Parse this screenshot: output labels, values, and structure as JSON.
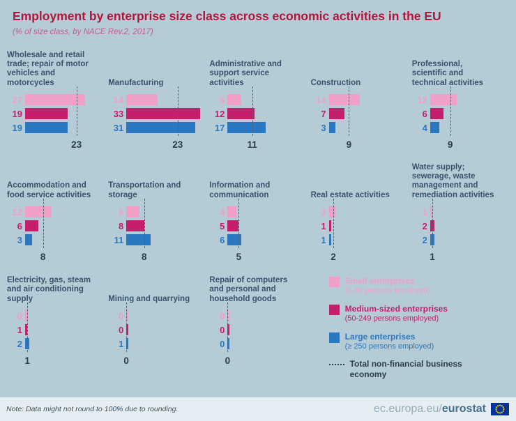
{
  "colors": {
    "background": "#b5cbd6",
    "title": "#b01639",
    "subtitle": "#c75b93",
    "small": "#f09fc6",
    "medium": "#c41e6c",
    "large": "#2a79c0",
    "chart_title_text": "#37536b",
    "total_text": "#2b3c4a",
    "eu_flag_blue": "#003399",
    "eu_flag_stars": "#ffcc00"
  },
  "header": {
    "title": "Employment by enterprise size class across economic activities in the EU",
    "subtitle": "(% of size class, by NACE Rev.2, 2017)"
  },
  "chart_data": {
    "type": "bar",
    "orientation": "horizontal",
    "title": "Employment by enterprise size class across economic activities in the EU",
    "subtitle": "(% of size class, by NACE Rev.2, 2017)",
    "unit": "% of size class",
    "legend_position": "bottom-right",
    "categories": [
      "Wholesale and retail trade; repair of motor vehicles and motorcycles",
      "Manufacturing",
      "Administrative and support service activities",
      "Construction",
      "Professional, scientific and technical activities",
      "Accommodation and food service activities",
      "Transportation and storage",
      "Information and communication",
      "Real estate activities",
      "Water supply; sewerage, waste management and remediation activities",
      "Electricity, gas, steam and air conditioning supply",
      "Mining and quarrying",
      "Repair of computers and personal and household goods"
    ],
    "series": [
      {
        "name": "Small enterprises (0-49 persons employed)",
        "values": [
          27,
          14,
          6,
          14,
          12,
          12,
          6,
          4,
          3,
          1,
          0,
          0,
          0
        ]
      },
      {
        "name": "Medium-sized enterprises (50-249 persons employed)",
        "values": [
          19,
          33,
          12,
          7,
          6,
          6,
          8,
          5,
          1,
          2,
          1,
          0,
          0
        ]
      },
      {
        "name": "Large enterprises (≥ 250 persons employed)",
        "values": [
          19,
          31,
          17,
          3,
          4,
          3,
          11,
          6,
          1,
          2,
          2,
          1,
          0
        ]
      },
      {
        "name": "Total non-financial business economy",
        "values": [
          23,
          23,
          11,
          9,
          9,
          8,
          8,
          5,
          2,
          1,
          1,
          0,
          0
        ]
      }
    ]
  },
  "legend": {
    "items": [
      {
        "label": "Small enterprises",
        "sublabel": "(0-49 persons employed)",
        "color": "#f09fc6",
        "swatch": "square"
      },
      {
        "label": "Medium-sized enterprises",
        "sublabel": "(50-249 persons employed)",
        "color": "#c41e6c",
        "swatch": "square"
      },
      {
        "label": "Large enterprises",
        "sublabel": "(≥ 250 persons employed)",
        "color": "#2a79c0",
        "swatch": "square"
      },
      {
        "label": "Total non-financial business economy",
        "sublabel": "",
        "color": "#2b3c4a",
        "swatch": "dashed-line"
      }
    ]
  },
  "footer": {
    "note": "Note: Data might not round to 100% due to rounding.",
    "url_prefix": "ec.europa.eu/",
    "wordmark": "eurostat"
  }
}
